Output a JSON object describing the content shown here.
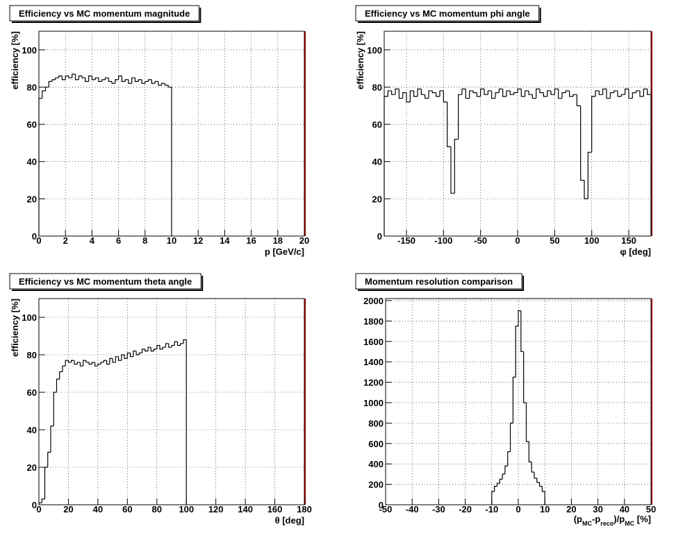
{
  "chart_data": [
    {
      "type": "histogram",
      "title": "Efficiency vs MC momentum magnitude",
      "xlabel": "p [GeV/c]",
      "ylabel": "efficiency [%]",
      "color": "#000000",
      "grid": true,
      "bins": [
        0,
        0.25,
        0.5,
        0.75,
        1,
        1.25,
        1.5,
        1.75,
        2,
        2.25,
        2.5,
        2.75,
        3,
        3.25,
        3.5,
        3.75,
        4,
        4.25,
        4.5,
        4.75,
        5,
        5.25,
        5.5,
        5.75,
        6,
        6.25,
        6.5,
        6.75,
        7,
        7.25,
        7.5,
        7.75,
        8,
        8.25,
        8.5,
        8.75,
        9,
        9.25,
        9.5,
        9.75,
        10
      ],
      "values": [
        74,
        78,
        80,
        83,
        84,
        85,
        86,
        84,
        86,
        85,
        87,
        84,
        86,
        85,
        83,
        86,
        84,
        85,
        83,
        84,
        85,
        83,
        82,
        84,
        86,
        83,
        84,
        82,
        85,
        83,
        84,
        82,
        83,
        84,
        82,
        83,
        81,
        82,
        81,
        80
      ],
      "xlim": [
        0,
        20
      ],
      "xticks": [
        0,
        2,
        4,
        6,
        8,
        10,
        12,
        14,
        16,
        18,
        20
      ],
      "ylim": [
        0,
        110
      ],
      "yticks": [
        0,
        20,
        40,
        60,
        80,
        100
      ]
    },
    {
      "type": "histogram",
      "title": "Efficiency vs MC momentum phi angle",
      "xlabel": "φ [deg]",
      "ylabel": "efficiency [%]",
      "color": "#000000",
      "grid": true,
      "bins": [
        -180,
        -175,
        -170,
        -165,
        -160,
        -155,
        -150,
        -145,
        -140,
        -135,
        -130,
        -125,
        -120,
        -115,
        -110,
        -105,
        -100,
        -95,
        -90,
        -85,
        -80,
        -75,
        -70,
        -65,
        -60,
        -55,
        -50,
        -45,
        -40,
        -35,
        -30,
        -25,
        -20,
        -15,
        -10,
        -5,
        0,
        5,
        10,
        15,
        20,
        25,
        30,
        35,
        40,
        45,
        50,
        55,
        60,
        65,
        70,
        75,
        80,
        85,
        90,
        95,
        100,
        105,
        110,
        115,
        120,
        125,
        130,
        135,
        140,
        145,
        150,
        155,
        160,
        165,
        170,
        175,
        180
      ],
      "values": [
        75,
        78,
        76,
        79,
        74,
        77,
        72,
        78,
        75,
        79,
        76,
        74,
        78,
        77,
        75,
        78,
        72,
        48,
        23,
        52,
        76,
        79,
        74,
        78,
        77,
        75,
        79,
        76,
        78,
        74,
        77,
        79,
        75,
        78,
        76,
        77,
        79,
        75,
        78,
        76,
        74,
        79,
        77,
        75,
        78,
        76,
        79,
        74,
        77,
        78,
        75,
        76,
        70,
        30,
        20,
        45,
        75,
        78,
        76,
        79,
        74,
        77,
        78,
        75,
        76,
        79,
        74,
        77,
        78,
        75,
        79,
        76
      ],
      "xlim": [
        -180,
        180
      ],
      "xticks": [
        -150,
        -100,
        -50,
        0,
        50,
        100,
        150
      ],
      "ylim": [
        0,
        110
      ],
      "yticks": [
        0,
        20,
        40,
        60,
        80,
        100
      ]
    },
    {
      "type": "histogram",
      "title": "Efficiency vs MC momentum theta angle",
      "xlabel": "θ [deg]",
      "ylabel": "efficiency [%]",
      "color": "#000000",
      "grid": true,
      "bins": [
        0,
        2,
        4,
        6,
        8,
        10,
        12,
        14,
        16,
        18,
        20,
        22,
        24,
        26,
        28,
        30,
        32,
        34,
        36,
        38,
        40,
        42,
        44,
        46,
        48,
        50,
        52,
        54,
        56,
        58,
        60,
        62,
        64,
        66,
        68,
        70,
        72,
        74,
        76,
        78,
        80,
        82,
        84,
        86,
        88,
        90,
        92,
        94,
        96,
        98,
        100
      ],
      "values": [
        1,
        3,
        20,
        28,
        42,
        60,
        67,
        71,
        74,
        77,
        76,
        77,
        75,
        76,
        74,
        77,
        76,
        75,
        76,
        74,
        75,
        76,
        77,
        75,
        78,
        76,
        79,
        77,
        80,
        78,
        81,
        79,
        82,
        80,
        81,
        83,
        82,
        84,
        82,
        83,
        85,
        83,
        84,
        86,
        84,
        85,
        87,
        85,
        86,
        88
      ],
      "xlim": [
        0,
        180
      ],
      "xticks": [
        0,
        20,
        40,
        60,
        80,
        100,
        120,
        140,
        160,
        180
      ],
      "ylim": [
        0,
        110
      ],
      "yticks": [
        0,
        20,
        40,
        60,
        80,
        100
      ]
    },
    {
      "type": "histogram",
      "title": "Momentum resolution comparison",
      "xlabel": [
        {
          "text": "(p"
        },
        {
          "text": "MC",
          "sub": true
        },
        {
          "text": "-p"
        },
        {
          "text": "reco",
          "sub": true
        },
        {
          "text": ")/p"
        },
        {
          "text": "MC",
          "sub": true
        },
        {
          "text": " [%]"
        }
      ],
      "color": "#000000",
      "grid": true,
      "bins": [
        -10,
        -9,
        -8,
        -7,
        -6,
        -5,
        -4,
        -3,
        -2,
        -1,
        0,
        1,
        2,
        3,
        4,
        5,
        6,
        7,
        8,
        9,
        10
      ],
      "values": [
        130,
        180,
        210,
        250,
        300,
        380,
        520,
        800,
        1250,
        1750,
        1900,
        1500,
        1000,
        620,
        420,
        320,
        260,
        220,
        180,
        130
      ],
      "xlim": [
        -50,
        50
      ],
      "xticks": [
        -50,
        -40,
        -30,
        -20,
        -10,
        0,
        10,
        20,
        30,
        40,
        50
      ],
      "ylim": [
        0,
        2020
      ],
      "yticks": [
        0,
        200,
        400,
        600,
        800,
        1000,
        1200,
        1400,
        1600,
        1800,
        2000
      ]
    }
  ]
}
